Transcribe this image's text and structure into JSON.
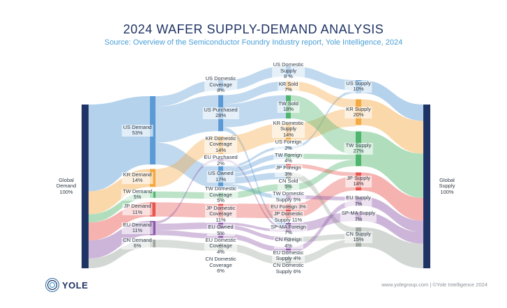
{
  "header": {
    "title": "2024 WAFER SUPPLY-DEMAND ANALYSIS",
    "subtitle": "Source: Overview of the Semiconductor Foundry Industry report, Yole Intelligence, 2024"
  },
  "footer": {
    "logo": "YOLE",
    "credit": "www.yolegroup.com | ©Yole Intelligence 2024"
  },
  "colors": {
    "US": "#5b9bd5",
    "KR": "#f4a942",
    "TW": "#4fb56d",
    "JP": "#e8544e",
    "EU": "#8e5aa8",
    "CN": "#9ea79f",
    "G": "#1f3364"
  },
  "chart_data": {
    "type": "sankey",
    "title": "2024 WAFER SUPPLY-DEMAND ANALYSIS",
    "unit": "%",
    "nodes": [
      {
        "id": "gd",
        "col": 0,
        "region": "G",
        "label": "Global\nDemand\n100%",
        "value": 100
      },
      {
        "id": "usd",
        "col": 1,
        "region": "US",
        "label": "US Demand\n53%",
        "value": 53
      },
      {
        "id": "krd",
        "col": 1,
        "region": "KR",
        "label": "KR Demand\n14%",
        "value": 14
      },
      {
        "id": "twd",
        "col": 1,
        "region": "TW",
        "label": "TW Demand\n5%",
        "value": 5
      },
      {
        "id": "jpd",
        "col": 1,
        "region": "JP",
        "label": "JP Demand\n11%",
        "value": 11
      },
      {
        "id": "eud",
        "col": 1,
        "region": "EU",
        "label": "EU Demand\n11%",
        "value": 11
      },
      {
        "id": "cnd",
        "col": 1,
        "region": "CN",
        "label": "CN Demand\n6%",
        "value": 6
      },
      {
        "id": "usdc",
        "col": 2,
        "region": "US",
        "label": "US Domestic\nCoverage\n8%",
        "value": 8
      },
      {
        "id": "usp",
        "col": 2,
        "region": "US",
        "label": "US Purchased\n28%",
        "value": 28
      },
      {
        "id": "krdc",
        "col": 2,
        "region": "KR",
        "label": "KR Domestic\nCoverage\n14%",
        "value": 14
      },
      {
        "id": "eup",
        "col": 2,
        "region": "EU",
        "label": "EU Purchased\n2%",
        "value": 2
      },
      {
        "id": "uso",
        "col": 2,
        "region": "US",
        "label": "US Owned\n17%",
        "value": 17
      },
      {
        "id": "twdc",
        "col": 2,
        "region": "TW",
        "label": "TW Domestic\nCoverage\n5%",
        "value": 5
      },
      {
        "id": "jpdc",
        "col": 2,
        "region": "JP",
        "label": "JP Domestic\nCoverage\n11%",
        "value": 11
      },
      {
        "id": "euo",
        "col": 2,
        "region": "EU",
        "label": "EU Owned\n5%",
        "value": 5
      },
      {
        "id": "eudc",
        "col": 2,
        "region": "EU",
        "label": "EU Domestic\nCoverage\n4%",
        "value": 4
      },
      {
        "id": "cndc",
        "col": 2,
        "region": "CN",
        "label": "CN Domestic\nCoverage\n6%",
        "value": 6
      },
      {
        "id": "usds",
        "col": 3,
        "region": "US",
        "label": "US Domestic\nSupply\n8 %",
        "value": 8
      },
      {
        "id": "krs",
        "col": 3,
        "region": "KR",
        "label": "KR Sold\n7%",
        "value": 7
      },
      {
        "id": "tws",
        "col": 3,
        "region": "TW",
        "label": "TW Sold\n18%",
        "value": 18
      },
      {
        "id": "krds",
        "col": 3,
        "region": "KR",
        "label": "KR Domestic\nSupply\n14%",
        "value": 14
      },
      {
        "id": "usf",
        "col": 3,
        "region": "US",
        "label": "US Foreign\n2%",
        "value": 2
      },
      {
        "id": "twf",
        "col": 3,
        "region": "TW",
        "label": "TW Foreign\n4%",
        "value": 4
      },
      {
        "id": "jpf",
        "col": 3,
        "region": "JP",
        "label": "JP Foreign\n3%",
        "value": 3
      },
      {
        "id": "cns",
        "col": 3,
        "region": "CN",
        "label": "CN Sold\n5%",
        "value": 5
      },
      {
        "id": "twds",
        "col": 3,
        "region": "TW",
        "label": "TW Domestic\nSupply 5%",
        "value": 5
      },
      {
        "id": "euf",
        "col": 3,
        "region": "EU",
        "label": "EU Foreign 3%",
        "value": 3
      },
      {
        "id": "jpds",
        "col": 3,
        "region": "JP",
        "label": "JP Domestic\nSupply 11%",
        "value": 11
      },
      {
        "id": "spf",
        "col": 3,
        "region": "EU",
        "label": "SP-MA Foreign\n7%",
        "value": 7
      },
      {
        "id": "cnf",
        "col": 3,
        "region": "CN",
        "label": "CN Foreign\n4%",
        "value": 4
      },
      {
        "id": "euds",
        "col": 3,
        "region": "EU",
        "label": "EU Domestic\nSupply 4%",
        "value": 4
      },
      {
        "id": "cnds",
        "col": 3,
        "region": "CN",
        "label": "CN Domestic\nSupply 6%",
        "value": 6
      },
      {
        "id": "uss",
        "col": 4,
        "region": "US",
        "label": "US Supply\n10%",
        "value": 10
      },
      {
        "id": "krsu",
        "col": 4,
        "region": "KR",
        "label": "KR Supply\n20%",
        "value": 20
      },
      {
        "id": "twsu",
        "col": 4,
        "region": "TW",
        "label": "TW Supply\n27%",
        "value": 27
      },
      {
        "id": "jpsu",
        "col": 4,
        "region": "JP",
        "label": "JP Supply\n14%",
        "value": 14
      },
      {
        "id": "eusu",
        "col": 4,
        "region": "EU",
        "label": "EU Supply\n7%",
        "value": 7
      },
      {
        "id": "spsu",
        "col": 4,
        "region": "EU",
        "label": "SP-MA Supply\n7%",
        "value": 7
      },
      {
        "id": "cnsu",
        "col": 4,
        "region": "CN",
        "label": "CN Supply\n15%",
        "value": 15
      },
      {
        "id": "gs",
        "col": 5,
        "region": "G",
        "label": "Global\nSupply\n100%",
        "value": 100
      }
    ],
    "links": [
      [
        "gd",
        "usd",
        53
      ],
      [
        "gd",
        "krd",
        14
      ],
      [
        "gd",
        "twd",
        5
      ],
      [
        "gd",
        "jpd",
        11
      ],
      [
        "gd",
        "eud",
        11
      ],
      [
        "gd",
        "cnd",
        6
      ],
      [
        "usd",
        "usdc",
        8
      ],
      [
        "usd",
        "usp",
        28
      ],
      [
        "usd",
        "uso",
        17
      ],
      [
        "krd",
        "krdc",
        14
      ],
      [
        "twd",
        "twdc",
        5
      ],
      [
        "jpd",
        "jpdc",
        11
      ],
      [
        "eud",
        "eup",
        2
      ],
      [
        "eud",
        "euo",
        5
      ],
      [
        "eud",
        "eudc",
        4
      ],
      [
        "cnd",
        "cndc",
        6
      ],
      [
        "usdc",
        "usds",
        8
      ],
      [
        "usp",
        "krs",
        7
      ],
      [
        "usp",
        "tws",
        18
      ],
      [
        "usp",
        "spf",
        3
      ],
      [
        "krdc",
        "krds",
        14
      ],
      [
        "eup",
        "spf",
        2
      ],
      [
        "uso",
        "usf",
        2
      ],
      [
        "uso",
        "twf",
        4
      ],
      [
        "uso",
        "jpf",
        3
      ],
      [
        "uso",
        "cns",
        5
      ],
      [
        "uso",
        "euf",
        3
      ],
      [
        "twdc",
        "twds",
        5
      ],
      [
        "jpdc",
        "jpds",
        11
      ],
      [
        "euo",
        "spf",
        2
      ],
      [
        "euo",
        "cnf",
        3
      ],
      [
        "eudc",
        "euds",
        4
      ],
      [
        "cndc",
        "cnds",
        6
      ],
      [
        "usds",
        "uss",
        8
      ],
      [
        "usf",
        "uss",
        2
      ],
      [
        "krs",
        "krsu",
        7
      ],
      [
        "krds",
        "krsu",
        14
      ],
      [
        "tws",
        "twsu",
        18
      ],
      [
        "twf",
        "twsu",
        4
      ],
      [
        "twds",
        "twsu",
        5
      ],
      [
        "jpf",
        "jpsu",
        3
      ],
      [
        "jpds",
        "jpsu",
        11
      ],
      [
        "cns",
        "cnsu",
        5
      ],
      [
        "cnf",
        "cnsu",
        4
      ],
      [
        "cnds",
        "cnsu",
        6
      ],
      [
        "euf",
        "eusu",
        3
      ],
      [
        "euds",
        "eusu",
        4
      ],
      [
        "spf",
        "spsu",
        7
      ],
      [
        "uss",
        "gs",
        10
      ],
      [
        "krsu",
        "gs",
        20
      ],
      [
        "twsu",
        "gs",
        27
      ],
      [
        "jpsu",
        "gs",
        14
      ],
      [
        "eusu",
        "gs",
        7
      ],
      [
        "spsu",
        "gs",
        7
      ],
      [
        "cnsu",
        "gs",
        15
      ]
    ]
  }
}
